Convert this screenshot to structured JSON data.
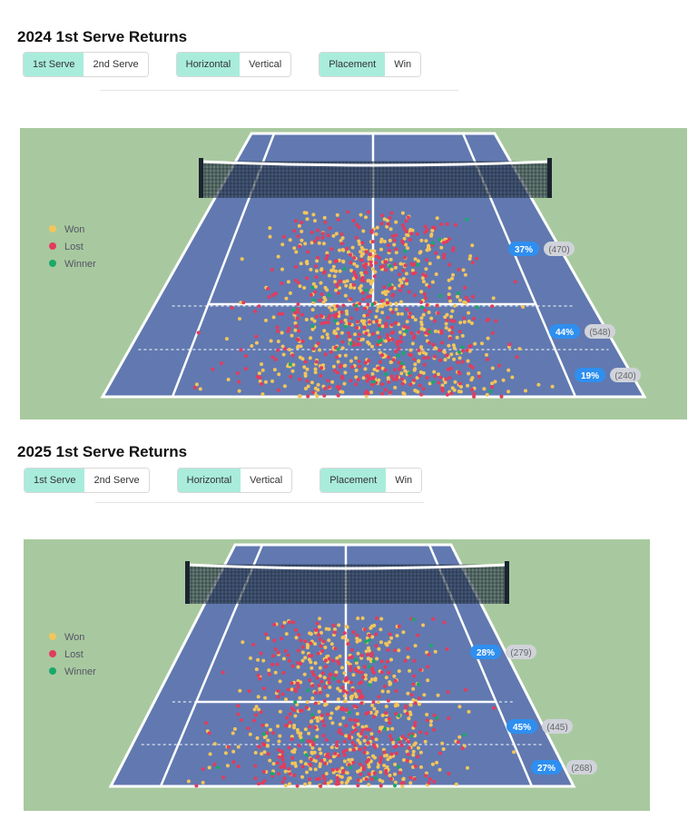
{
  "sections": [
    {
      "title": "2024 1st Serve Returns",
      "toggles": [
        [
          "1st Serve",
          "2nd Serve"
        ],
        [
          "Horizontal",
          "Vertical"
        ],
        [
          "Placement",
          "Win"
        ]
      ],
      "legend": [
        "Won",
        "Lost",
        "Winner"
      ],
      "zones": [
        {
          "pct": "37%",
          "count": "(470)"
        },
        {
          "pct": "44%",
          "count": "(548)"
        },
        {
          "pct": "19%",
          "count": "(240)"
        }
      ],
      "dot_counts": {
        "won": 560,
        "lost": 440,
        "winner": 40
      }
    },
    {
      "title": "2025 1st Serve Returns",
      "toggles": [
        [
          "1st Serve",
          "2nd Serve"
        ],
        [
          "Horizontal",
          "Vertical"
        ],
        [
          "Placement",
          "Win"
        ]
      ],
      "legend": [
        "Won",
        "Lost",
        "Winner"
      ],
      "zones": [
        {
          "pct": "28%",
          "count": "(279)"
        },
        {
          "pct": "45%",
          "count": "(445)"
        },
        {
          "pct": "27%",
          "count": "(268)"
        }
      ],
      "dot_counts": {
        "won": 450,
        "lost": 380,
        "winner": 30
      }
    }
  ],
  "colors": {
    "grass": "#a8c99f",
    "court": "#6179b0",
    "won": "#f3c55a",
    "lost": "#e23c5e",
    "winner": "#1aa86a",
    "badge": "#2e8ff0"
  }
}
